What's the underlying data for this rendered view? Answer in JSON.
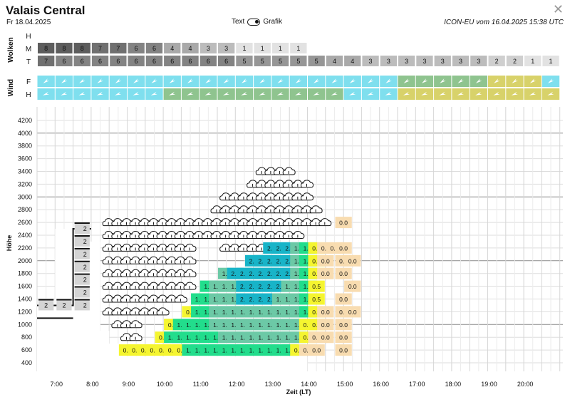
{
  "header": {
    "title": "Valais Central",
    "date": "Fr 18.04.2025",
    "toggle_left": "Text",
    "toggle_right": "Grafik",
    "model": "ICON-EU vom 16.04.2025 15:38 UTC"
  },
  "close_icon": "close-icon",
  "clouds": {
    "section_label": "Wolken",
    "rows": [
      {
        "label": "H",
        "values": []
      },
      {
        "label": "M",
        "values": [
          "8",
          "8",
          "8",
          "7",
          "7",
          "6",
          "6",
          "4",
          "4",
          "3",
          "3",
          "1",
          "1",
          "1",
          "1",
          "",
          "",
          "",
          "",
          "",
          "",
          "",
          "",
          "",
          "",
          "",
          "",
          "",
          ""
        ]
      },
      {
        "label": "T",
        "values": [
          "7",
          "6",
          "6",
          "6",
          "6",
          "6",
          "6",
          "6",
          "6",
          "6",
          "6",
          "5",
          "5",
          "5",
          "5",
          "5",
          "4",
          "4",
          "3",
          "3",
          "3",
          "3",
          "3",
          "3",
          "3",
          "2",
          "2",
          "1",
          "1"
        ]
      }
    ]
  },
  "wind": {
    "section_label": "Wind",
    "rows": [
      "F",
      "H"
    ],
    "colors": {
      "cyan": "#7fdfee",
      "green": "#8fc48f",
      "yellow": "#d8d26a"
    },
    "row_F": [
      "c",
      "c",
      "c",
      "c",
      "c",
      "c",
      "c",
      "c",
      "c",
      "c",
      "c",
      "c",
      "c",
      "c",
      "c",
      "c",
      "c",
      "c",
      "c",
      "c",
      "g",
      "g",
      "g",
      "g",
      "g",
      "y",
      "y",
      "y",
      "c"
    ],
    "row_H": [
      "c",
      "c",
      "c",
      "c",
      "c",
      "c",
      "c",
      "g",
      "g",
      "g",
      "g",
      "g",
      "g",
      "g",
      "g",
      "g",
      "g",
      "c",
      "c",
      "c",
      "y",
      "y",
      "y",
      "y",
      "y",
      "y",
      "y",
      "y",
      "y"
    ]
  },
  "chart_data": {
    "type": "heatmap",
    "ylabel": "Höhe",
    "xlabel": "Zeit (LT)",
    "y_ticks": [
      400,
      600,
      800,
      1000,
      1200,
      1400,
      1600,
      1800,
      2000,
      2200,
      2400,
      2600,
      2800,
      3000,
      3200,
      3400,
      3600,
      3800,
      4000,
      4200
    ],
    "x_ticks": [
      "7:00",
      "8:00",
      "9:00",
      "10:00",
      "11:00",
      "12:00",
      "13:00",
      "14:00",
      "15:00",
      "16:00",
      "17:00",
      "18:00",
      "19:00",
      "20:00"
    ],
    "palette": {
      "0.0": "#f8dcb0",
      "0.5": "#f5f530",
      "1.0": "#22dd8c",
      "1.5": "#6cc9a6",
      "2.0": "#18b4c8"
    },
    "terrain_top": [
      1400,
      1400,
      2600,
      2400,
      2400,
      2400,
      1000,
      800,
      800,
      600,
      600,
      600,
      600,
      600,
      600,
      600,
      600,
      600,
      600,
      600,
      600,
      600,
      600,
      600,
      600,
      600,
      600,
      600,
      600
    ],
    "terrain_labels": [
      {
        "col": 0,
        "values": [
          "2"
        ]
      },
      {
        "col": 1,
        "values": [
          "2"
        ]
      },
      {
        "col": 2,
        "values": [
          "2",
          "2",
          "2",
          "2",
          "2",
          "2",
          "2"
        ]
      }
    ],
    "cloud_icon_columns": [
      {
        "col": 3,
        "from": 1200,
        "to": 2600
      },
      {
        "col": 4,
        "from": 1000,
        "to": 2600
      },
      {
        "col": 5,
        "from": 800,
        "to": 2600
      },
      {
        "col": 6,
        "from": 600,
        "to": 2600
      },
      {
        "col": 7,
        "from": 1200,
        "to": 2600
      },
      {
        "col": 8,
        "from": 1200,
        "to": 2600
      },
      {
        "col": 9,
        "from": 1200,
        "to": 2600
      },
      {
        "col": 10,
        "from": 1400,
        "to": 2600
      },
      {
        "col": 11,
        "from": 1400,
        "to": 2600
      },
      {
        "col": 12,
        "from": 1600,
        "to": 2600
      },
      {
        "col": 13,
        "from": 2400,
        "to": 2600
      },
      {
        "col": 14,
        "from": 2400,
        "to": 2600
      },
      {
        "col": 15,
        "from": 2400,
        "to": 2800
      },
      {
        "col": 16,
        "from": 2200,
        "to": 3000
      },
      {
        "col": 17,
        "from": 2200,
        "to": 3000
      },
      {
        "col": 18,
        "from": 2200,
        "to": 3000
      },
      {
        "col": 19,
        "from": 2200,
        "to": 3200
      },
      {
        "col": 20,
        "from": 2200,
        "to": 3400
      },
      {
        "col": 21,
        "from": 2400,
        "to": 3400
      },
      {
        "col": 22,
        "from": 2400,
        "to": 3400
      },
      {
        "col": 23,
        "from": 2400,
        "to": 3400
      },
      {
        "col": 24,
        "from": 2400,
        "to": 3200
      },
      {
        "col": 25,
        "from": 2600,
        "to": 3200
      },
      {
        "col": 26,
        "from": 2600,
        "to": 2800
      },
      {
        "col": 27,
        "from": 2600,
        "to": 2600
      }
    ],
    "columns": [
      {
        "col": 7,
        "cells": [
          {
            "alt": 600,
            "v": "0.5"
          }
        ]
      },
      {
        "col": 8,
        "cells": [
          {
            "alt": 600,
            "v": "0.5"
          }
        ]
      },
      {
        "col": 9,
        "cells": [
          {
            "alt": 600,
            "v": "0.5"
          }
        ]
      },
      {
        "col": 10,
        "cells": [
          {
            "alt": 600,
            "v": "0.5"
          }
        ]
      },
      {
        "col": 11,
        "cells": [
          {
            "alt": 600,
            "v": "0.5"
          },
          {
            "alt": 800,
            "v": "0.5"
          }
        ]
      },
      {
        "col": 12,
        "cells": [
          {
            "alt": 600,
            "v": "0.5"
          },
          {
            "alt": 800,
            "v": "1.0"
          },
          {
            "alt": 1000,
            "v": "0.5"
          }
        ]
      },
      {
        "col": 13,
        "cells": [
          {
            "alt": 600,
            "v": "0.5"
          },
          {
            "alt": 800,
            "v": "1.0"
          },
          {
            "alt": 1000,
            "v": "1.0"
          }
        ]
      },
      {
        "col": 14,
        "cells": [
          {
            "alt": 600,
            "v": "1.0"
          },
          {
            "alt": 800,
            "v": "1.0"
          },
          {
            "alt": 1000,
            "v": "1.0"
          },
          {
            "alt": 1200,
            "v": "0.5"
          }
        ]
      },
      {
        "col": 15,
        "cells": [
          {
            "alt": 600,
            "v": "1.0"
          },
          {
            "alt": 800,
            "v": "1.0"
          },
          {
            "alt": 1000,
            "v": "1.0"
          },
          {
            "alt": 1200,
            "v": "1.0"
          },
          {
            "alt": 1400,
            "v": "1.0"
          }
        ]
      },
      {
        "col": 16,
        "cells": [
          {
            "alt": 600,
            "v": "1.0"
          },
          {
            "alt": 800,
            "v": "1.0"
          },
          {
            "alt": 1000,
            "v": "1.0"
          },
          {
            "alt": 1200,
            "v": "1.0"
          },
          {
            "alt": 1400,
            "v": "1.0"
          },
          {
            "alt": 1600,
            "v": "1.0"
          }
        ]
      },
      {
        "col": 17,
        "cells": [
          {
            "alt": 600,
            "v": "1.0"
          },
          {
            "alt": 800,
            "v": "1.0"
          },
          {
            "alt": 1000,
            "v": "1.5"
          },
          {
            "alt": 1200,
            "v": "1.5"
          },
          {
            "alt": 1400,
            "v": "1.5"
          },
          {
            "alt": 1600,
            "v": "1.5"
          }
        ]
      },
      {
        "col": 18,
        "cells": [
          {
            "alt": 600,
            "v": "1.0"
          },
          {
            "alt": 800,
            "v": "1.5"
          },
          {
            "alt": 1000,
            "v": "1.5"
          },
          {
            "alt": 1200,
            "v": "1.5"
          },
          {
            "alt": 1400,
            "v": "1.5"
          },
          {
            "alt": 1600,
            "v": "1.5"
          },
          {
            "alt": 1800,
            "v": "1.5"
          }
        ]
      },
      {
        "col": 19,
        "cells": [
          {
            "alt": 600,
            "v": "1.0"
          },
          {
            "alt": 800,
            "v": "1.5"
          },
          {
            "alt": 1000,
            "v": "1.5"
          },
          {
            "alt": 1200,
            "v": "1.5"
          },
          {
            "alt": 1400,
            "v": "1.5"
          },
          {
            "alt": 1600,
            "v": "1.5"
          },
          {
            "alt": 1800,
            "v": "2.0"
          }
        ]
      },
      {
        "col": 20,
        "cells": [
          {
            "alt": 600,
            "v": "1.0"
          },
          {
            "alt": 800,
            "v": "1.5"
          },
          {
            "alt": 1000,
            "v": "1.5"
          },
          {
            "alt": 1200,
            "v": "1.5"
          },
          {
            "alt": 1400,
            "v": "2.0"
          },
          {
            "alt": 1600,
            "v": "2.0"
          },
          {
            "alt": 1800,
            "v": "2.0"
          }
        ]
      },
      {
        "col": 21,
        "cells": [
          {
            "alt": 600,
            "v": "1.0"
          },
          {
            "alt": 800,
            "v": "1.5"
          },
          {
            "alt": 1000,
            "v": "1.5"
          },
          {
            "alt": 1200,
            "v": "1.5"
          },
          {
            "alt": 1400,
            "v": "2.0"
          },
          {
            "alt": 1600,
            "v": "2.0"
          },
          {
            "alt": 1800,
            "v": "2.0"
          },
          {
            "alt": 2000,
            "v": "2.0"
          }
        ]
      },
      {
        "col": 22,
        "cells": [
          {
            "alt": 600,
            "v": "1.0"
          },
          {
            "alt": 800,
            "v": "1.5"
          },
          {
            "alt": 1000,
            "v": "1.5"
          },
          {
            "alt": 1200,
            "v": "1.5"
          },
          {
            "alt": 1400,
            "v": "2.0"
          },
          {
            "alt": 1600,
            "v": "2.0"
          },
          {
            "alt": 1800,
            "v": "2.0"
          },
          {
            "alt": 2000,
            "v": "2.0"
          }
        ]
      },
      {
        "col": 23,
        "cells": [
          {
            "alt": 600,
            "v": "1.0"
          },
          {
            "alt": 800,
            "v": "1.5"
          },
          {
            "alt": 1000,
            "v": "1.5"
          },
          {
            "alt": 1200,
            "v": "1.5"
          },
          {
            "alt": 1400,
            "v": "2.0"
          },
          {
            "alt": 1600,
            "v": "2.0"
          },
          {
            "alt": 1800,
            "v": "2.0"
          },
          {
            "alt": 2000,
            "v": "2.0"
          },
          {
            "alt": 2200,
            "v": "2.0"
          }
        ]
      },
      {
        "col": 24,
        "cells": [
          {
            "alt": 600,
            "v": "1.0"
          },
          {
            "alt": 800,
            "v": "1.5"
          },
          {
            "alt": 1000,
            "v": "1.5"
          },
          {
            "alt": 1200,
            "v": "1.5"
          },
          {
            "alt": 1400,
            "v": "1.5"
          },
          {
            "alt": 1600,
            "v": "2.0"
          },
          {
            "alt": 1800,
            "v": "2.0"
          },
          {
            "alt": 2000,
            "v": "2.0"
          },
          {
            "alt": 2200,
            "v": "2.0"
          }
        ]
      },
      {
        "col": 25,
        "cells": [
          {
            "alt": 600,
            "v": "1.0"
          },
          {
            "alt": 800,
            "v": "1.5"
          },
          {
            "alt": 1000,
            "v": "1.5"
          },
          {
            "alt": 1200,
            "v": "1.5"
          },
          {
            "alt": 1400,
            "v": "1.5"
          },
          {
            "alt": 1600,
            "v": "1.5"
          },
          {
            "alt": 1800,
            "v": "2.0"
          },
          {
            "alt": 2000,
            "v": "2.0"
          },
          {
            "alt": 2200,
            "v": "2.0"
          }
        ]
      },
      {
        "col": 26,
        "cells": [
          {
            "alt": 600,
            "v": "0.5"
          },
          {
            "alt": 800,
            "v": "1.5"
          },
          {
            "alt": 1000,
            "v": "1.5"
          },
          {
            "alt": 1200,
            "v": "1.5"
          },
          {
            "alt": 1400,
            "v": "1.5"
          },
          {
            "alt": 1600,
            "v": "1.5"
          },
          {
            "alt": 1800,
            "v": "1.5"
          },
          {
            "alt": 2000,
            "v": "1.5"
          },
          {
            "alt": 2200,
            "v": "1.5"
          }
        ]
      },
      {
        "col": 27,
        "cells": [
          {
            "alt": 600,
            "v": "0.0"
          },
          {
            "alt": 800,
            "v": "0.5"
          },
          {
            "alt": 1000,
            "v": "0.5"
          },
          {
            "alt": 1200,
            "v": "1.0"
          },
          {
            "alt": 1400,
            "v": "1.0"
          },
          {
            "alt": 1600,
            "v": "1.0"
          },
          {
            "alt": 1800,
            "v": "1.0"
          },
          {
            "alt": 2000,
            "v": "1.0"
          },
          {
            "alt": 2200,
            "v": "1.0"
          }
        ]
      },
      {
        "col": 28,
        "cells": [
          {
            "alt": 600,
            "v": "0.0"
          },
          {
            "alt": 800,
            "v": "0.0"
          },
          {
            "alt": 1000,
            "v": "0.5"
          },
          {
            "alt": 1200,
            "v": "0.5"
          },
          {
            "alt": 1400,
            "v": "0.5"
          },
          {
            "alt": 1600,
            "v": "0.5"
          },
          {
            "alt": 1800,
            "v": "0.5"
          },
          {
            "alt": 2000,
            "v": "0.5"
          },
          {
            "alt": 2200,
            "v": "0.5"
          }
        ]
      },
      {
        "col": 29,
        "cells": [
          {
            "alt": 800,
            "v": "0.0"
          },
          {
            "alt": 1000,
            "v": "0.0"
          },
          {
            "alt": 1200,
            "v": "0.0"
          },
          {
            "alt": 1800,
            "v": "0.0"
          },
          {
            "alt": 2000,
            "v": "0.0"
          },
          {
            "alt": 2200,
            "v": "0.0"
          }
        ]
      },
      {
        "col": 30,
        "cells": [
          {
            "alt": 2200,
            "v": "0.0"
          }
        ]
      },
      {
        "col": 31,
        "cells": [
          {
            "alt": 600,
            "v": "0.0"
          },
          {
            "alt": 800,
            "v": "0.0"
          },
          {
            "alt": 1000,
            "v": "0.0"
          },
          {
            "alt": 1200,
            "v": "0.0"
          },
          {
            "alt": 1400,
            "v": "0.0"
          },
          {
            "alt": 1800,
            "v": "0.0"
          },
          {
            "alt": 2000,
            "v": "0.0"
          },
          {
            "alt": 2200,
            "v": "0.0"
          },
          {
            "alt": 2600,
            "v": "0.0"
          }
        ]
      },
      {
        "col": 32,
        "cells": [
          {
            "alt": 1200,
            "v": "0.0"
          },
          {
            "alt": 1600,
            "v": "0.0"
          },
          {
            "alt": 2000,
            "v": "0.0"
          }
        ]
      }
    ]
  }
}
